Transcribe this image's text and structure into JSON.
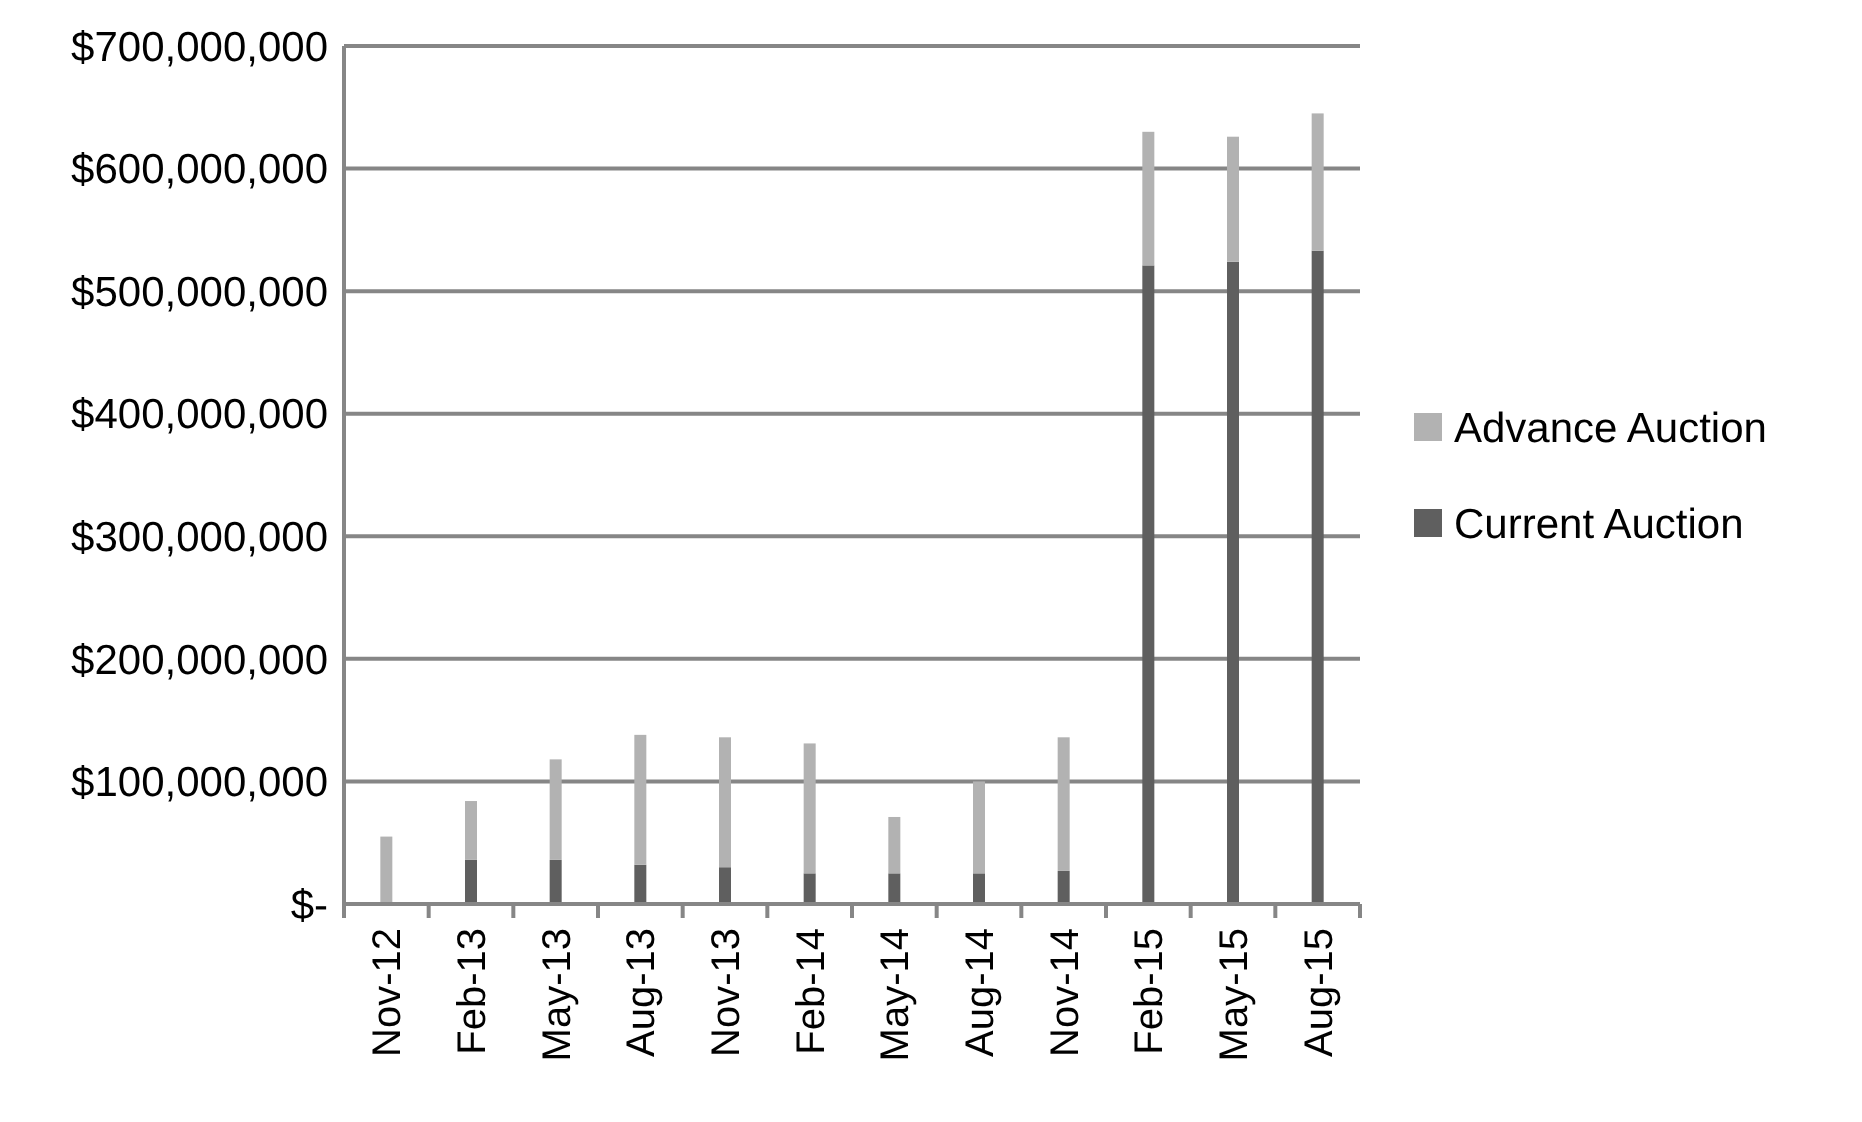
{
  "chart_data": {
    "type": "bar",
    "stacked": true,
    "categories": [
      "Nov-12",
      "Feb-13",
      "May-13",
      "Aug-13",
      "Nov-13",
      "Feb-14",
      "May-14",
      "Aug-14",
      "Nov-14",
      "Feb-15",
      "May-15",
      "Aug-15"
    ],
    "series": [
      {
        "name": "Current Auction",
        "color": "#5f5f5f",
        "values": [
          0,
          36000000,
          36000000,
          32000000,
          30000000,
          25000000,
          25000000,
          25000000,
          27000000,
          521000000,
          524000000,
          533000000
        ]
      },
      {
        "name": "Advance Auction",
        "color": "#b2b2b2",
        "values": [
          55000000,
          48000000,
          82000000,
          106000000,
          106000000,
          106000000,
          46000000,
          75000000,
          109000000,
          109000000,
          102000000,
          112000000
        ]
      }
    ],
    "ylim": [
      0,
      700000000
    ],
    "yticks": [
      {
        "value": 0,
        "label": "$-"
      },
      {
        "value": 100000000,
        "label": "$100,000,000"
      },
      {
        "value": 200000000,
        "label": "$200,000,000"
      },
      {
        "value": 300000000,
        "label": "$300,000,000"
      },
      {
        "value": 400000000,
        "label": "$400,000,000"
      },
      {
        "value": 500000000,
        "label": "$500,000,000"
      },
      {
        "value": 600000000,
        "label": "$600,000,000"
      },
      {
        "value": 700000000,
        "label": "$700,000,000"
      }
    ],
    "grid": "y",
    "legend": "right"
  }
}
